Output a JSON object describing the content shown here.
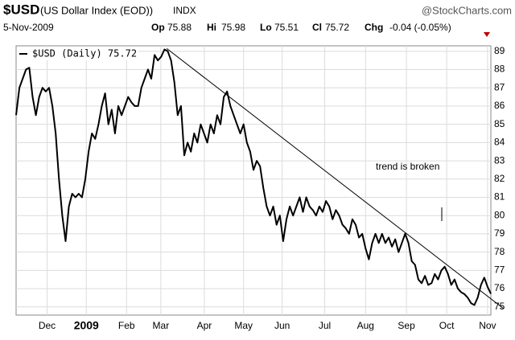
{
  "chart_data": {
    "type": "line",
    "header": {
      "symbol": "$USD",
      "description": "(US Dollar Index (EOD))",
      "exchange": "INDX",
      "source": "@StockCharts.com",
      "date": "5-Nov-2009",
      "open_label": "Op",
      "open": 75.88,
      "high_label": "Hi",
      "high": 75.98,
      "low_label": "Lo",
      "low": 75.51,
      "close_label": "Cl",
      "close": 75.72,
      "change_label": "Chg",
      "change": "-0.04 (-0.05%)"
    },
    "series": [
      {
        "name": "$USD (Daily) 75.72",
        "color": "#000000",
        "values": [
          85.5,
          87,
          87.5,
          88,
          88.1,
          86.5,
          85.5,
          86.5,
          87,
          86.8,
          87,
          86,
          84.5,
          82,
          80,
          78.6,
          80.5,
          81.2,
          81,
          81.2,
          81,
          82,
          83.5,
          84.5,
          84.2,
          85,
          86,
          86.7,
          85,
          85.8,
          84.5,
          86,
          85.5,
          86,
          86.5,
          86.2,
          86,
          86,
          87,
          87.5,
          88,
          87.5,
          88.8,
          88.5,
          88.7,
          89.1,
          89,
          88.5,
          87.3,
          85.5,
          86,
          83.3,
          84,
          83.5,
          84.5,
          84,
          85,
          84.5,
          84,
          85,
          84.5,
          85.5,
          85,
          86.5,
          86.8,
          86,
          85.5,
          85,
          84.5,
          85,
          84,
          83.5,
          82.5,
          83,
          82.7,
          81.5,
          80.5,
          80,
          80.5,
          79.5,
          80,
          78.6,
          79.8,
          80.5,
          80,
          80.5,
          81,
          80.2,
          81,
          80.5,
          80.3,
          80,
          80.5,
          80.2,
          80.8,
          80.5,
          79.8,
          80.3,
          80,
          79.5,
          79.3,
          79,
          79.8,
          79.5,
          78.8,
          79,
          78.2,
          77.6,
          78.5,
          79,
          78.5,
          79,
          78.5,
          78.8,
          78.3,
          78.7,
          78,
          78.5,
          79,
          78.5,
          77.5,
          77.3,
          76.5,
          76.3,
          76.7,
          76.2,
          76.3,
          76.8,
          76.5,
          77,
          77.2,
          76.8,
          76.2,
          76.5,
          76,
          75.8,
          75.7,
          75.5,
          75.2,
          75.1,
          75.5,
          76.2,
          76.6,
          76.1,
          75.72
        ]
      }
    ],
    "xlim": [
      0,
      144
    ],
    "xticks": [
      {
        "value": 9.4,
        "label": "Dec"
      },
      {
        "value": 21.3,
        "label": "2009"
      },
      {
        "value": 33.5,
        "label": "Feb"
      },
      {
        "value": 43.9,
        "label": "Mar"
      },
      {
        "value": 57.1,
        "label": "Apr"
      },
      {
        "value": 69,
        "label": "May"
      },
      {
        "value": 80.7,
        "label": "Jun"
      },
      {
        "value": 93.6,
        "label": "Jul"
      },
      {
        "value": 106,
        "label": "Aug"
      },
      {
        "value": 118.4,
        "label": "Sep"
      },
      {
        "value": 130.6,
        "label": "Oct"
      },
      {
        "value": 143,
        "label": "Nov"
      }
    ],
    "ylim": [
      74.55,
      89.3
    ],
    "yticks": [
      75,
      76,
      77,
      78,
      79,
      80,
      81,
      82,
      83,
      84,
      85,
      86,
      87,
      88,
      89
    ],
    "grid": true,
    "trendline": {
      "x": [
        45.7,
        147.9
      ],
      "values": [
        89.15,
        74.9
      ]
    },
    "annotation": "trend is broken"
  }
}
